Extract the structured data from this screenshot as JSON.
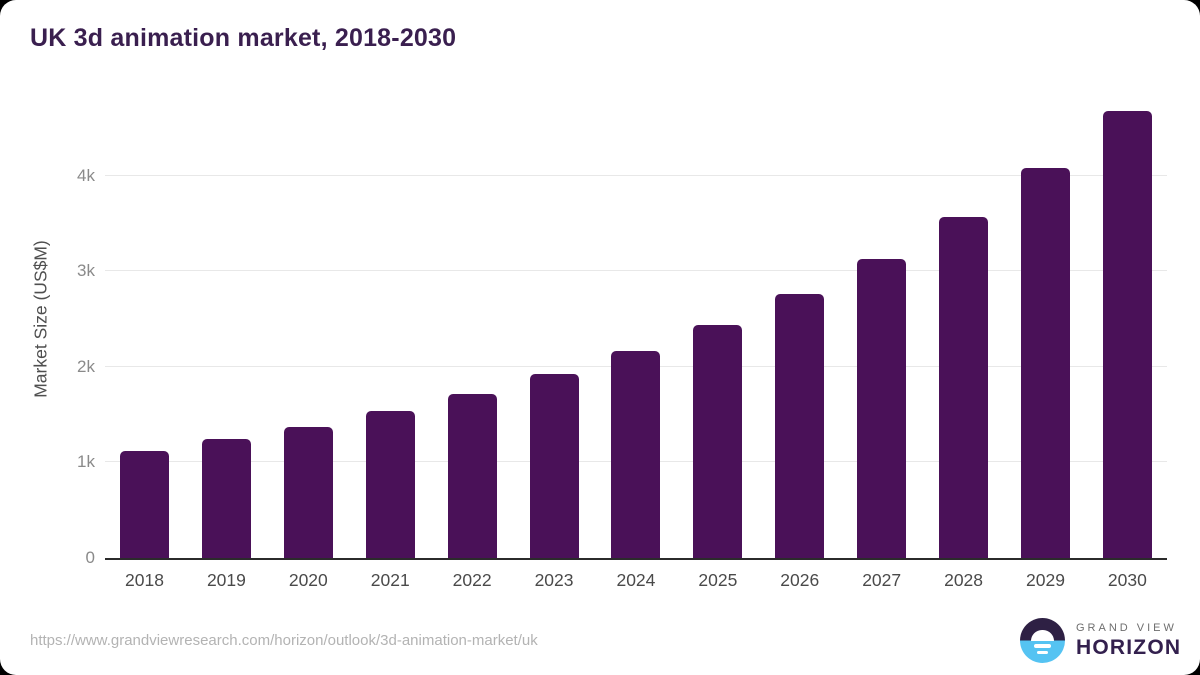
{
  "header": {
    "title": "UK 3d animation market, 2018-2030"
  },
  "chart_data": {
    "type": "bar",
    "title": "UK 3d animation market, 2018-2030",
    "xlabel": "",
    "ylabel": "Market Size (US$M)",
    "categories": [
      "2018",
      "2019",
      "2020",
      "2021",
      "2022",
      "2023",
      "2024",
      "2025",
      "2026",
      "2027",
      "2028",
      "2029",
      "2030"
    ],
    "values": [
      1120,
      1245,
      1375,
      1540,
      1715,
      1930,
      2170,
      2435,
      2760,
      3130,
      3570,
      4080,
      4680
    ],
    "ylim": [
      0,
      5000
    ],
    "yticks": [
      {
        "value": 0,
        "label": "0"
      },
      {
        "value": 1000,
        "label": "1k"
      },
      {
        "value": 2000,
        "label": "2k"
      },
      {
        "value": 3000,
        "label": "3k"
      },
      {
        "value": 4000,
        "label": "4k"
      }
    ],
    "grid": true,
    "legend": "none",
    "bar_color": "#4a1158"
  },
  "footer": {
    "source_url": "https://www.grandviewresearch.com/horizon/outlook/3d-animation-market/uk",
    "logo": {
      "top": "GRAND VIEW",
      "bottom": "HORIZON"
    }
  },
  "colors": {
    "title": "#3a1f4f",
    "bar": "#4a1158",
    "gridline": "#e8e8e8",
    "axis_line": "#2b2b2b",
    "tick_label": "#8a8a8a",
    "x_label": "#4a4a4a",
    "url_text": "#b3b3b3",
    "logo_dark": "#2e2044",
    "logo_blue": "#55c3f2"
  }
}
